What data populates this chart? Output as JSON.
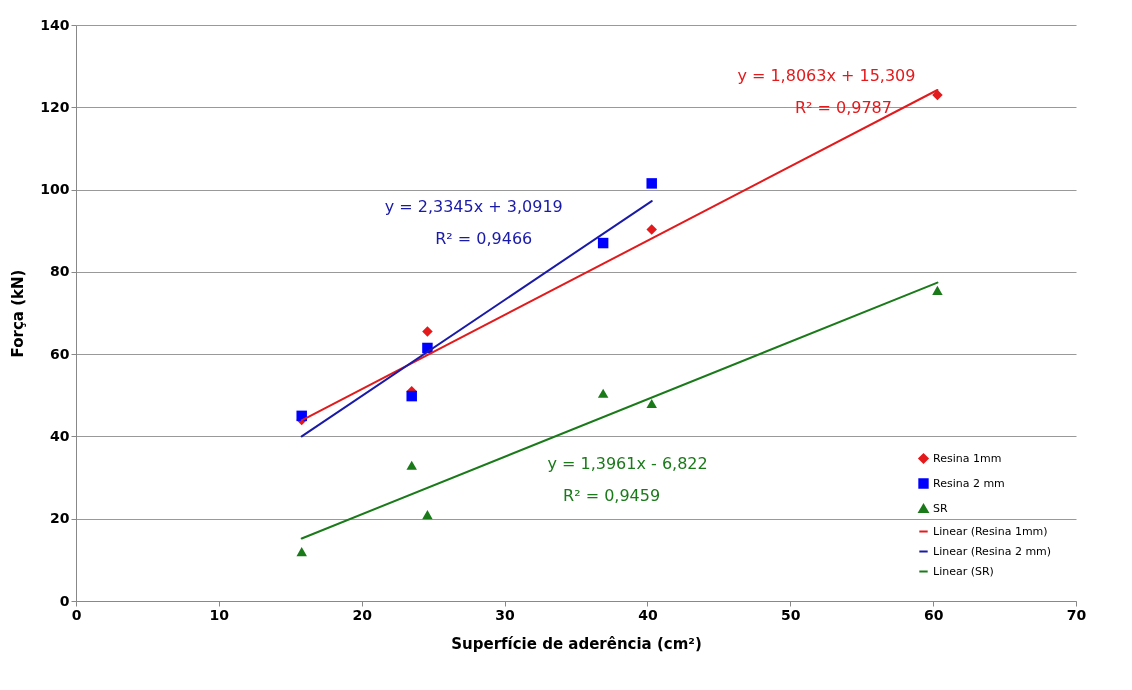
{
  "chart_data": {
    "type": "scatter",
    "xlabel": "Superfície de aderência (cm²)",
    "ylabel": "Força (kN)",
    "xlim": [
      0,
      70
    ],
    "xticks": [
      0,
      10,
      20,
      30,
      40,
      50,
      60,
      70
    ],
    "ylim": [
      0,
      140
    ],
    "yticks": [
      0,
      20,
      40,
      60,
      80,
      100,
      120,
      140
    ],
    "grid": "y",
    "legend": "bottom right",
    "series": [
      {
        "name": "Resina 1mm",
        "color": "#e31a1c",
        "marker": "diamond",
        "x": [
          15.8,
          23.5,
          24.6,
          40.3,
          60.3
        ],
        "values": [
          44,
          51,
          65.5,
          90.3,
          123
        ]
      },
      {
        "name": "Resina 2 mm",
        "color": "#0000ff",
        "marker": "square",
        "x": [
          15.8,
          23.5,
          24.6,
          36.9,
          40.3
        ],
        "values": [
          45,
          49.8,
          61.5,
          87,
          101.5
        ]
      },
      {
        "name": "SR",
        "color": "#1a7a1a",
        "marker": "triangle",
        "x": [
          15.8,
          23.5,
          24.6,
          36.9,
          40.3,
          60.3
        ],
        "values": [
          12,
          33,
          21,
          50.5,
          48,
          75.5
        ]
      },
      {
        "name": "Linear (Resina 1mm)",
        "type": "line",
        "color": "#e31a1c",
        "x": [
          15.8,
          60.3
        ],
        "values": [
          43.9,
          124.2
        ]
      },
      {
        "name": "Linear (Resina 2 mm)",
        "type": "line",
        "color": "#1a1aa8",
        "x": [
          15.8,
          40.3
        ],
        "values": [
          40.0,
          97.2
        ]
      },
      {
        "name": "Linear (SR)",
        "type": "line",
        "color": "#1a7a1a",
        "x": [
          15.8,
          60.3
        ],
        "values": [
          15.2,
          77.4
        ]
      }
    ],
    "annotations": [
      "y = 1,8063x + 15,309",
      "R² = 0,9787",
      "y = 2,3345x + 3,0919",
      "R² = 0,9466",
      "y = 1,3961x - 6,822",
      "R² = 0,9459"
    ]
  }
}
